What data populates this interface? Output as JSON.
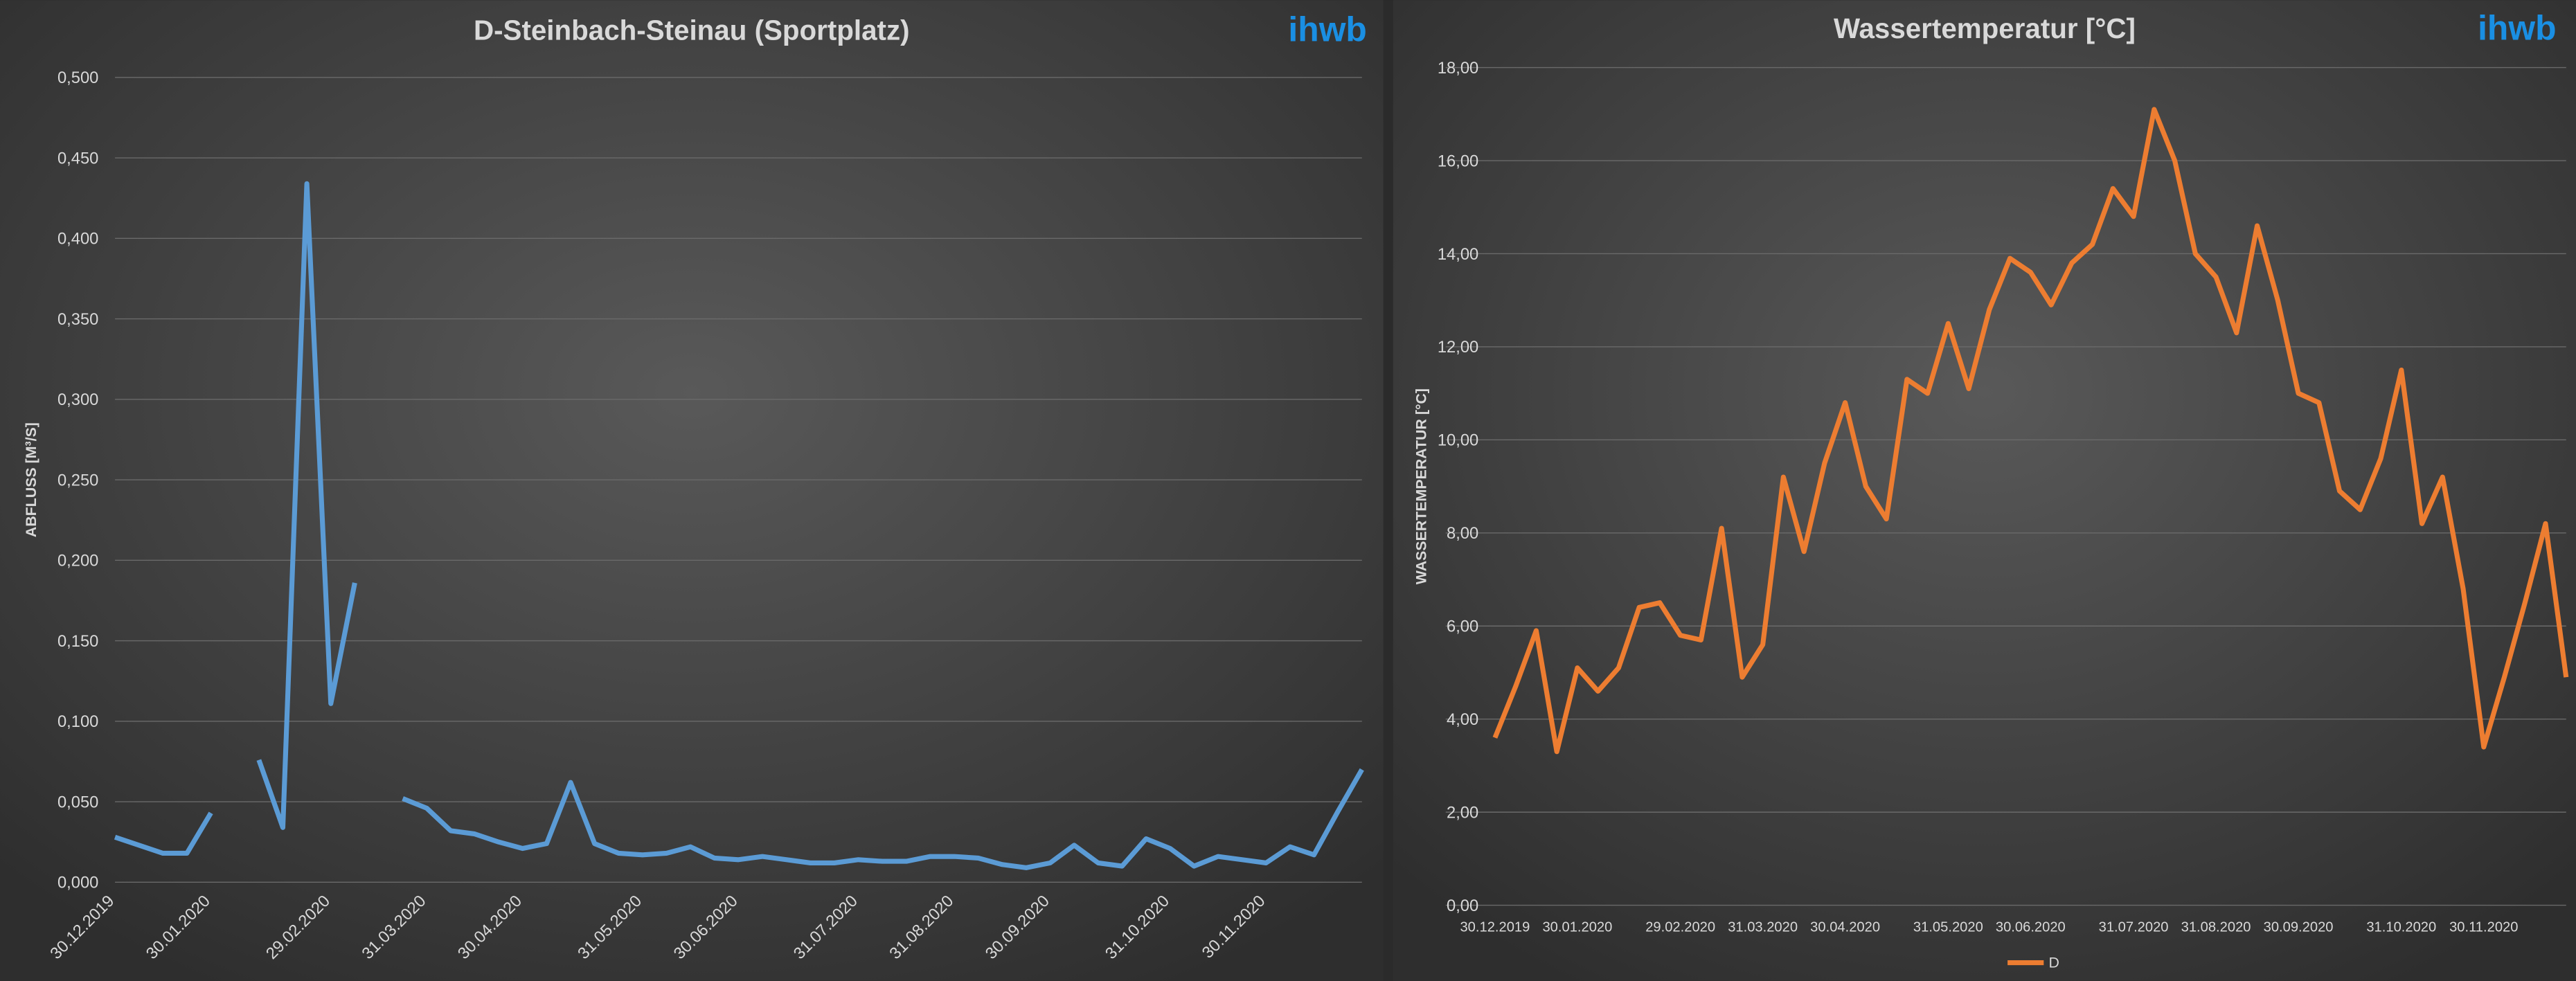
{
  "chart_data": [
    {
      "type": "line",
      "title": "D-Steinbach-Steinau (Sportplatz)",
      "logo": "ihwb",
      "y_label": "ABFLUSS [M³/S]",
      "categories": [
        "30.12.2019",
        null,
        null,
        null,
        "30.01.2020",
        null,
        null,
        null,
        null,
        "29.02.2020",
        null,
        null,
        null,
        "31.03.2020",
        null,
        null,
        null,
        "30.04.2020",
        null,
        null,
        null,
        null,
        "31.05.2020",
        null,
        null,
        null,
        "30.06.2020",
        null,
        null,
        null,
        null,
        "31.07.2020",
        null,
        null,
        null,
        "31.08.2020",
        null,
        null,
        null,
        "30.09.2020",
        null,
        null,
        null,
        null,
        "31.10.2020",
        null,
        null,
        null,
        "30.11.2020",
        null,
        null,
        null,
        null
      ],
      "series": [
        {
          "color": "#5b9bd5",
          "values": [
            0.028,
            0.023,
            0.018,
            0.018,
            0.043,
            null,
            0.076,
            0.034,
            0.434,
            0.111,
            0.186,
            null,
            0.052,
            0.046,
            0.032,
            0.03,
            0.025,
            0.021,
            0.024,
            0.062,
            0.024,
            0.018,
            0.017,
            0.018,
            0.022,
            0.015,
            0.014,
            0.016,
            0.014,
            0.012,
            0.012,
            0.014,
            0.013,
            0.013,
            0.016,
            0.016,
            0.015,
            0.011,
            0.009,
            0.012,
            0.023,
            0.012,
            0.01,
            0.027,
            0.021,
            0.01,
            0.016,
            0.014,
            0.012,
            0.022,
            0.017,
            0.044,
            0.07
          ]
        }
      ],
      "ylim": [
        0,
        0.5
      ],
      "yticks": [
        {
          "value": 0,
          "label": "0,000"
        },
        {
          "value": 0.05,
          "label": "0,050"
        },
        {
          "value": 0.1,
          "label": "0,100"
        },
        {
          "value": 0.15,
          "label": "0,150"
        },
        {
          "value": 0.2,
          "label": "0,200"
        },
        {
          "value": 0.25,
          "label": "0,250"
        },
        {
          "value": 0.3,
          "label": "0,300"
        },
        {
          "value": 0.35,
          "label": "0,350"
        },
        {
          "value": 0.4,
          "label": "0,400"
        },
        {
          "value": 0.45,
          "label": "0,450"
        },
        {
          "value": 0.5,
          "label": "0,500"
        }
      ],
      "grid": true,
      "legend": false,
      "rotate_x_labels": true
    },
    {
      "type": "line",
      "title": "Wassertemperatur [°C]",
      "logo": "ihwb",
      "y_label": "WASSERTEMPERATUR [°C]",
      "categories": [
        "30.12.2019",
        null,
        null,
        null,
        "30.01.2020",
        null,
        null,
        null,
        null,
        "29.02.2020",
        null,
        null,
        null,
        "31.03.2020",
        null,
        null,
        null,
        "30.04.2020",
        null,
        null,
        null,
        null,
        "31.05.2020",
        null,
        null,
        null,
        "30.06.2020",
        null,
        null,
        null,
        null,
        "31.07.2020",
        null,
        null,
        null,
        "31.08.2020",
        null,
        null,
        null,
        "30.09.2020",
        null,
        null,
        null,
        null,
        "31.10.2020",
        null,
        null,
        null,
        "30.11.2020",
        null,
        null,
        null,
        null
      ],
      "series": [
        {
          "name": "D",
          "color": "#ed7d31",
          "values": [
            3.6,
            4.7,
            5.9,
            3.3,
            5.1,
            4.6,
            5.1,
            6.4,
            6.5,
            5.8,
            5.7,
            8.1,
            4.9,
            5.6,
            9.2,
            7.6,
            9.5,
            10.8,
            9.0,
            8.3,
            11.3,
            11.0,
            12.5,
            11.1,
            12.8,
            13.9,
            13.6,
            12.9,
            13.8,
            14.2,
            15.4,
            14.8,
            17.1,
            16.0,
            14.0,
            13.5,
            12.3,
            14.6,
            13.0,
            11.0,
            10.8,
            8.9,
            8.5,
            9.6,
            11.5,
            8.2,
            9.2,
            6.8,
            3.4,
            4.9,
            6.5,
            8.2,
            4.9
          ]
        }
      ],
      "ylim": [
        0,
        18
      ],
      "yticks": [
        {
          "value": 0,
          "label": "0,00"
        },
        {
          "value": 2,
          "label": "2,00"
        },
        {
          "value": 4,
          "label": "4,00"
        },
        {
          "value": 6,
          "label": "6,00"
        },
        {
          "value": 8,
          "label": "8,00"
        },
        {
          "value": 10,
          "label": "10,00"
        },
        {
          "value": 12,
          "label": "12,00"
        },
        {
          "value": 14,
          "label": "14,00"
        },
        {
          "value": 16,
          "label": "16,00"
        },
        {
          "value": 18,
          "label": "18,00"
        }
      ],
      "grid": true,
      "legend": "bottom",
      "rotate_x_labels": false
    }
  ]
}
